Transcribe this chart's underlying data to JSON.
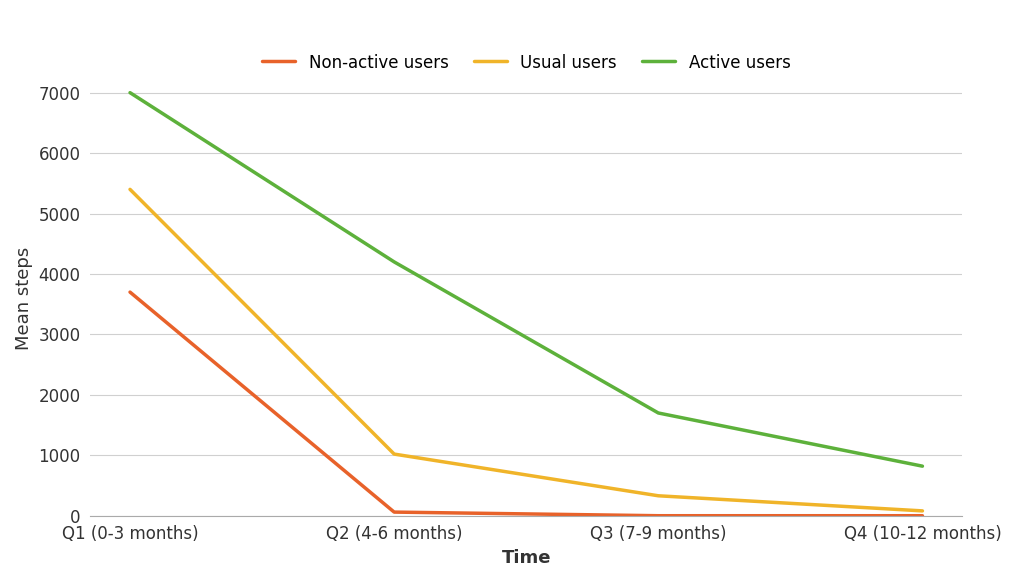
{
  "x_labels": [
    "Q1 (0-3 months)",
    "Q2 (4-6 months)",
    "Q3 (7-9 months)",
    "Q4 (10-12 months)"
  ],
  "series": [
    {
      "label": "Non-active users",
      "values": [
        3700,
        60,
        0,
        0
      ],
      "color": "#E8622A"
    },
    {
      "label": "Usual users",
      "values": [
        5400,
        1020,
        330,
        80
      ],
      "color": "#F0B429"
    },
    {
      "label": "Active users",
      "values": [
        7000,
        4200,
        1700,
        820
      ],
      "color": "#5DB13B"
    }
  ],
  "ylabel": "Mean steps",
  "xlabel": "Time",
  "ylim": [
    0,
    7200
  ],
  "yticks": [
    0,
    1000,
    2000,
    3000,
    4000,
    5000,
    6000,
    7000
  ],
  "background_color": "#ffffff",
  "grid_color": "#d0d0d0",
  "linewidth": 2.5,
  "label_fontsize": 13,
  "tick_fontsize": 12,
  "legend_fontsize": 12
}
